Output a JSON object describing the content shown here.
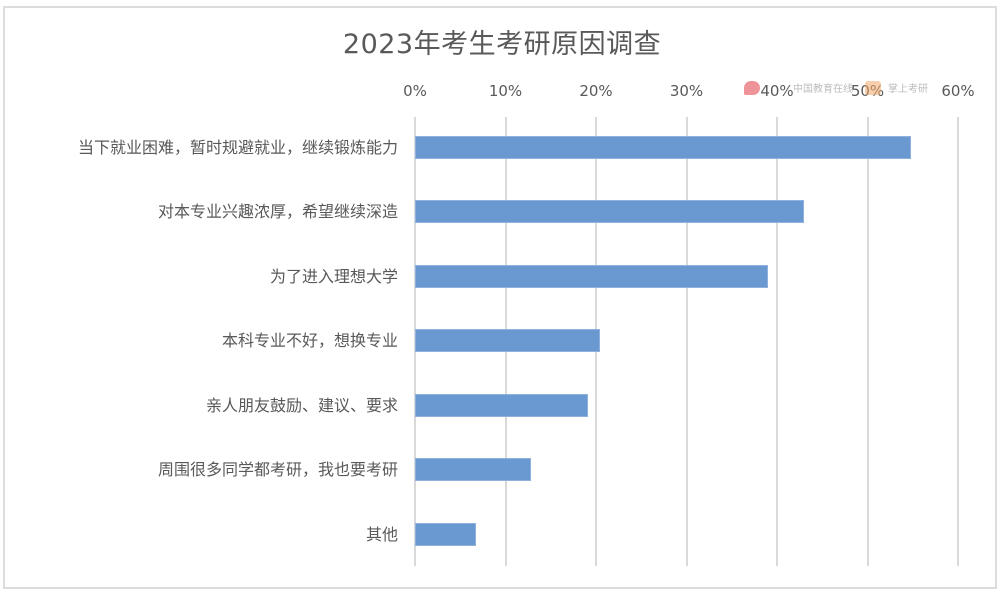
{
  "chart_data": {
    "type": "bar",
    "orientation": "horizontal",
    "title": "2023年考生考研原因调查",
    "xlabel": "",
    "ylabel": "",
    "xlim": [
      0,
      60
    ],
    "x_ticks": [
      "0%",
      "10%",
      "20%",
      "30%",
      "40%",
      "50%",
      "60%"
    ],
    "x_axis_position": "top",
    "grid": true,
    "legend": null,
    "bar_color": "#6a98d0",
    "categories": [
      "当下就业困难，暂时规避就业，继续锻炼能力",
      "对本专业兴趣浓厚，希望继续深造",
      "为了进入理想大学",
      "本科专业不好，想换专业",
      "亲人朋友鼓励、建议、要求",
      "周围很多同学都考研，我也要考研",
      "其他"
    ],
    "values": [
      54.8,
      43.0,
      39.0,
      20.4,
      19.1,
      12.8,
      6.7
    ],
    "unit": "%"
  },
  "watermarks": [
    {
      "name": "china-education-online-logo",
      "text": "中国教育在线"
    },
    {
      "name": "zhangshang-kaoyan-logo",
      "text": "掌上考研"
    }
  ]
}
